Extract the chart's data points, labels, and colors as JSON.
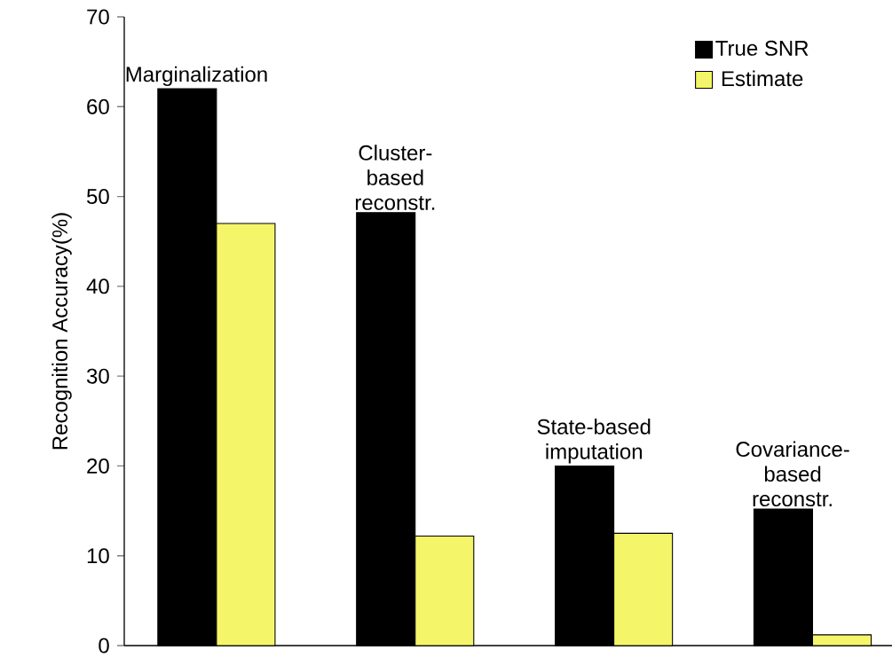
{
  "chart_data": {
    "type": "bar",
    "categories": [
      "Marginalization",
      "Cluster-based reconstr.",
      "State-based imputation",
      "Covariance-based reconstr."
    ],
    "series": [
      {
        "name": "True SNR",
        "color": "#000000",
        "values": [
          62,
          48.2,
          20,
          15.2
        ]
      },
      {
        "name": "Estimate",
        "color": "#f5f56a",
        "values": [
          47,
          12.2,
          12.5,
          1.2
        ]
      }
    ],
    "ylabel": "Recognition Accuracy(%)",
    "ylim": [
      0,
      70
    ],
    "yticks": [
      0,
      10,
      20,
      30,
      40,
      50,
      60,
      70
    ],
    "legend": "top right"
  }
}
